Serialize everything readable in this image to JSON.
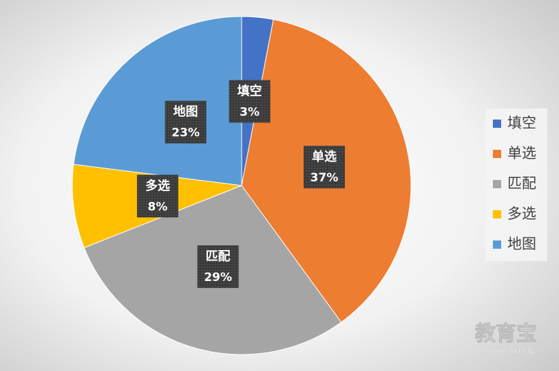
{
  "chart_data": {
    "type": "pie",
    "categories": [
      "填空",
      "单选",
      "匹配",
      "多选",
      "地图"
    ],
    "values": [
      3,
      37,
      29,
      8,
      23
    ],
    "value_labels": [
      "3%",
      "37%",
      "29%",
      "8%",
      "23%"
    ],
    "colors": [
      "#4472c4",
      "#ed7d31",
      "#a5a5a5",
      "#ffc000",
      "#5b9bd5"
    ],
    "legend": "right"
  },
  "watermark": {
    "text": "教育宝",
    "url": "JIAOYUBAO.CN"
  }
}
